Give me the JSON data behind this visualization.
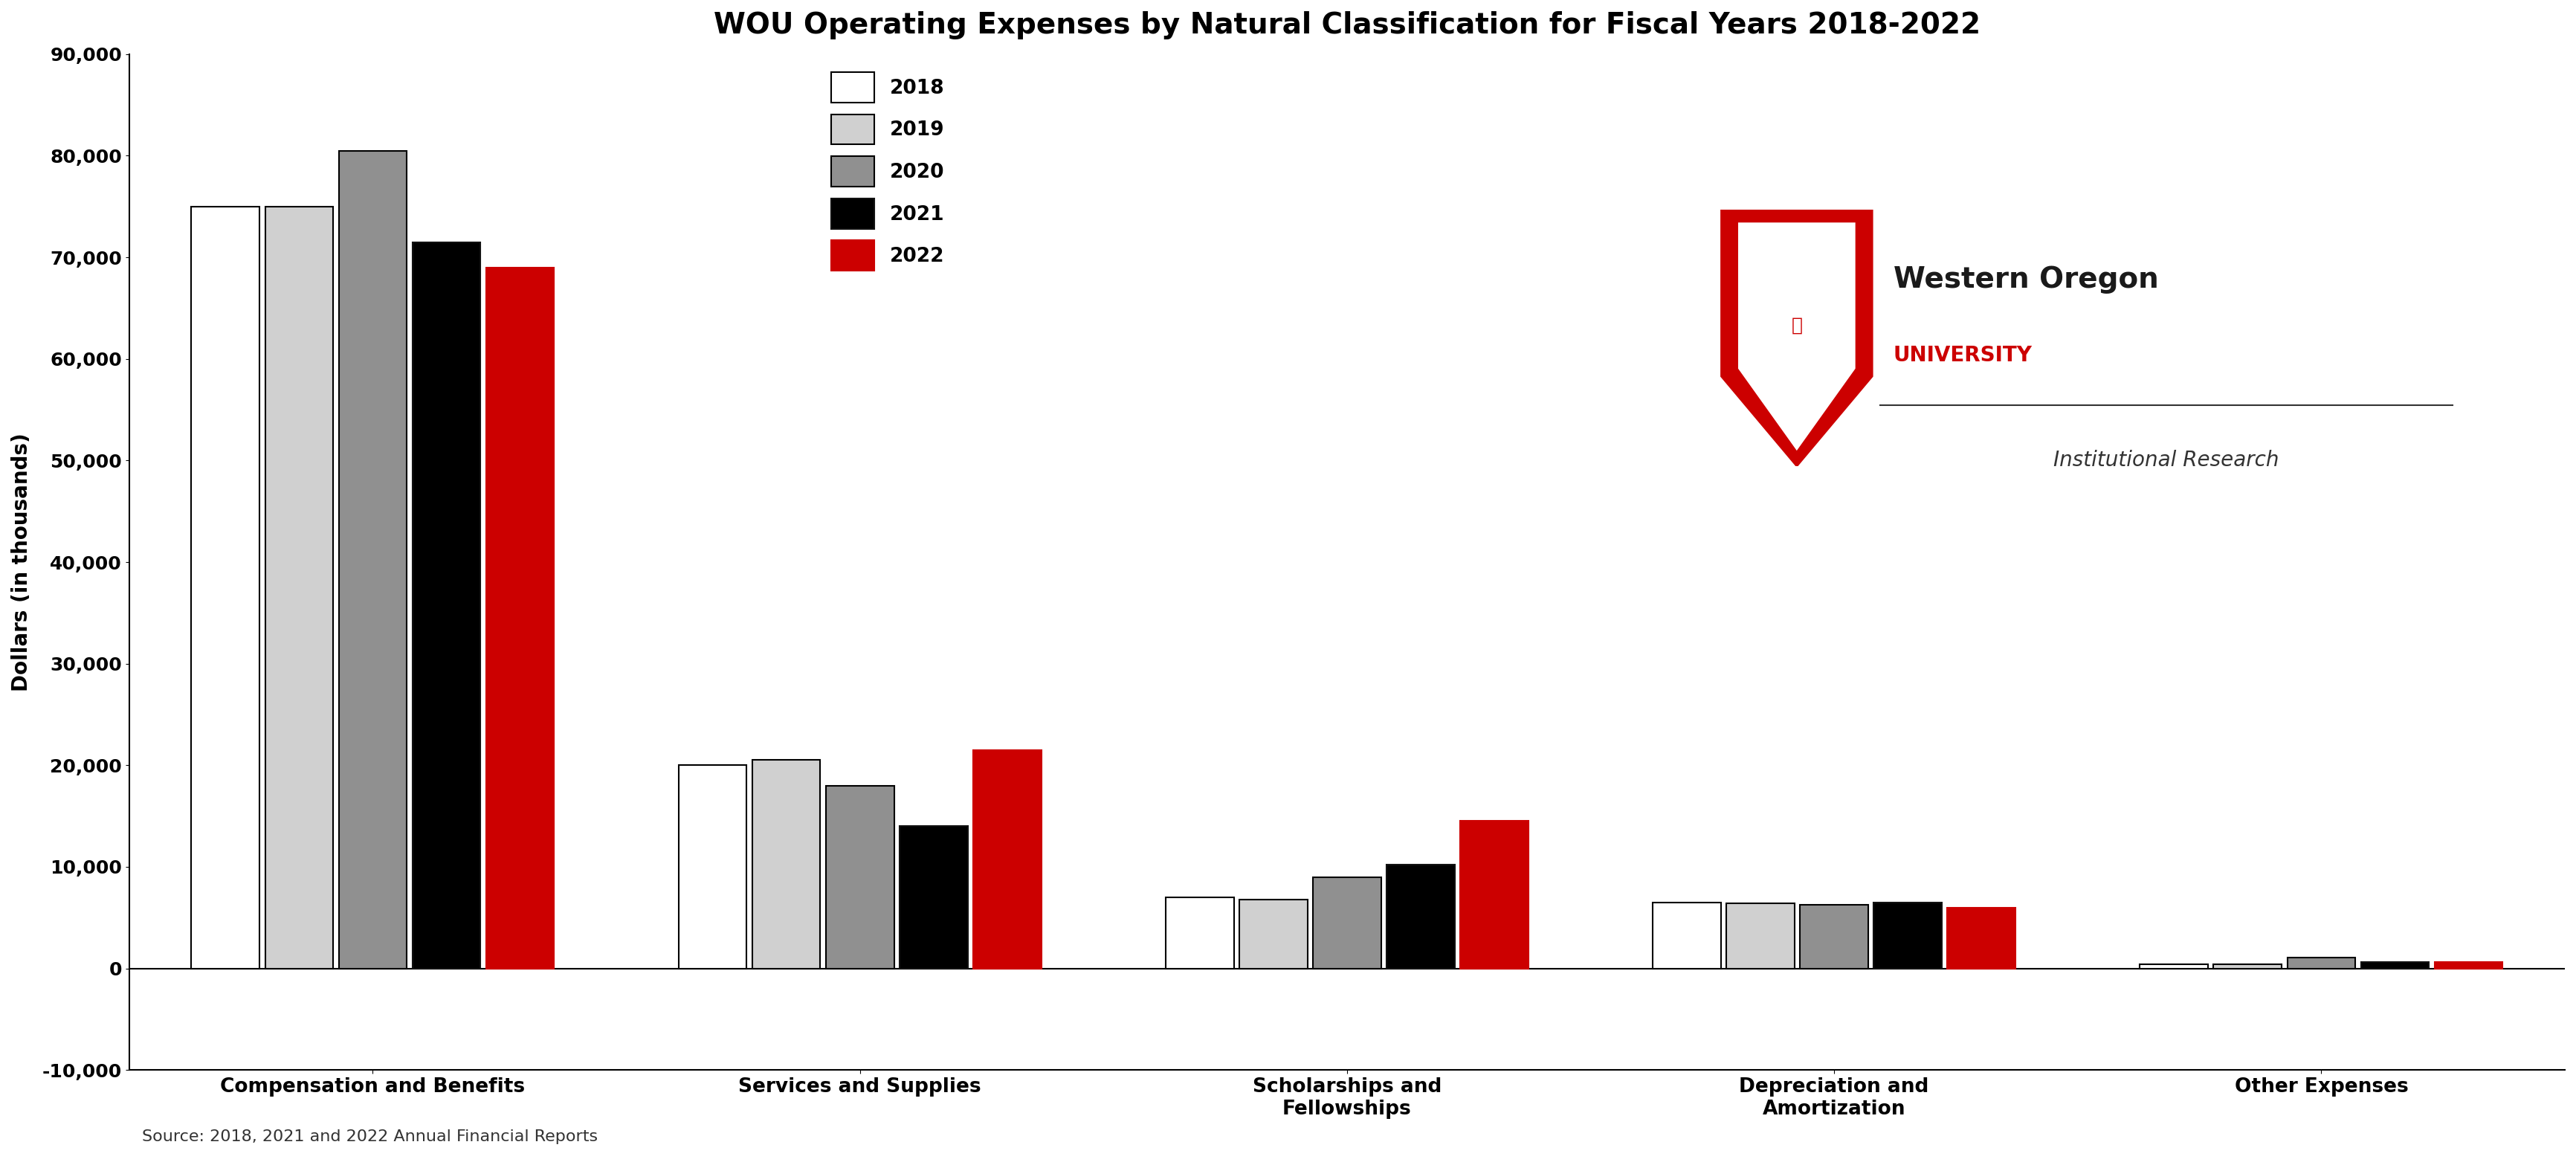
{
  "title": "WOU Operating Expenses by Natural Classification for Fiscal Years 2018-2022",
  "ylabel": "Dollars (in thousands)",
  "source": "Source: 2018, 2021 and 2022 Annual Financial Reports",
  "categories": [
    "Compensation and Benefits",
    "Services and Supplies",
    "Scholarships and\nFellowships",
    "Depreciation and\nAmortization",
    "Other Expenses"
  ],
  "years": [
    "2018",
    "2019",
    "2020",
    "2021",
    "2022"
  ],
  "data": {
    "2018": [
      75000,
      20000,
      7000,
      6500,
      400
    ],
    "2019": [
      75000,
      20500,
      6800,
      6400,
      400
    ],
    "2020": [
      80500,
      18000,
      9000,
      6300,
      1100
    ],
    "2021": [
      71500,
      14000,
      10200,
      6500,
      600
    ],
    "2022": [
      69000,
      21500,
      14500,
      6000,
      600
    ]
  },
  "colors": {
    "2018": "#ffffff",
    "2019": "#d0d0d0",
    "2020": "#909090",
    "2021": "#000000",
    "2022": "#cc0000"
  },
  "edge_colors": {
    "2018": "#000000",
    "2019": "#000000",
    "2020": "#000000",
    "2021": "#111111",
    "2022": "#cc0000"
  },
  "ylim": [
    -10000,
    90000
  ],
  "yticks": [
    -10000,
    0,
    10000,
    20000,
    30000,
    40000,
    50000,
    60000,
    70000,
    80000,
    90000
  ],
  "title_fontsize": 28,
  "axis_label_fontsize": 20,
  "tick_fontsize": 18,
  "legend_fontsize": 19,
  "source_fontsize": 16,
  "bar_width": 0.14,
  "background_color": "#ffffff",
  "wou_name_line1": "Western Oregon",
  "wou_name_line2": "UNIVERSITY",
  "wou_subtitle": "Institutional Research"
}
